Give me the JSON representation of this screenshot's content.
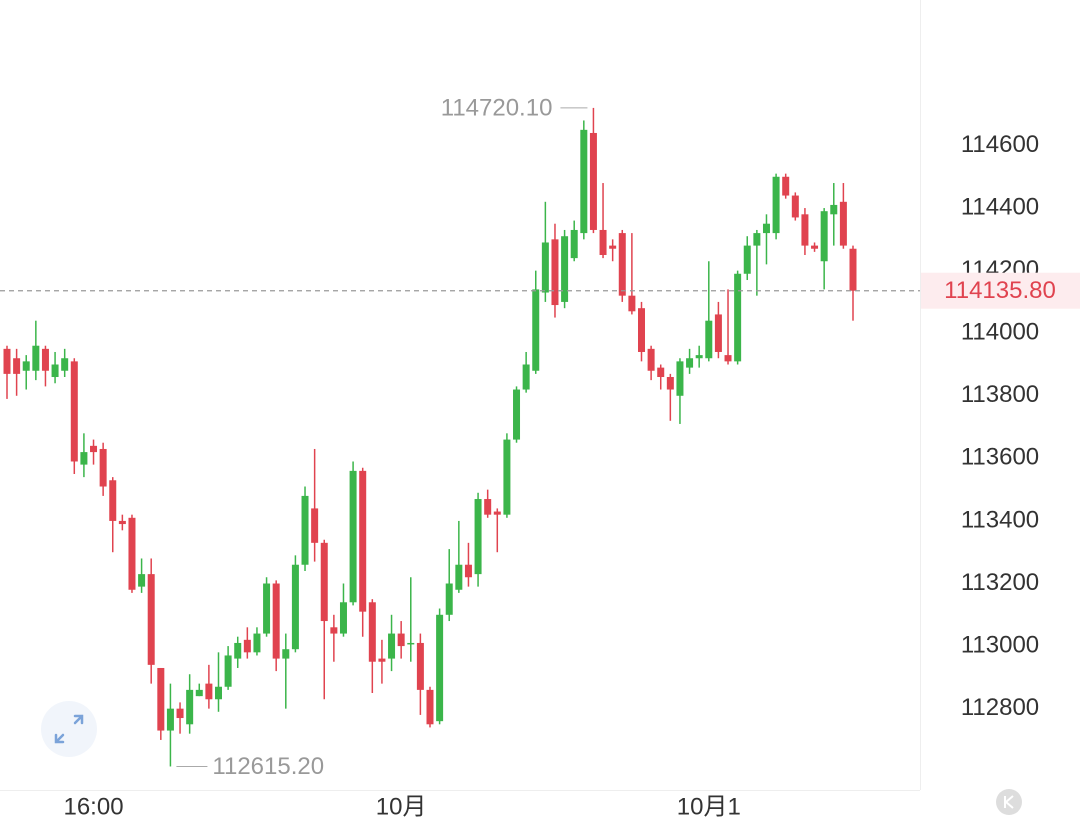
{
  "chart_data": {
    "type": "candlestick",
    "categories": [
      null,
      null,
      null,
      null,
      null,
      null,
      null,
      null,
      null,
      "16:00",
      null,
      null,
      null,
      null,
      null,
      null,
      null,
      null,
      null,
      null,
      null,
      null,
      null,
      null,
      null,
      null,
      null,
      null,
      null,
      null,
      null,
      null,
      null,
      null,
      null,
      null,
      null,
      null,
      null,
      null,
      null,
      "10月",
      null,
      null,
      null,
      null,
      null,
      null,
      null,
      null,
      null,
      null,
      null,
      null,
      null,
      null,
      null,
      null,
      null,
      null,
      null,
      null,
      null,
      null,
      null,
      null,
      null,
      null,
      null,
      null,
      null,
      null,
      null,
      "10月1",
      null,
      null,
      null,
      null,
      null,
      null,
      null,
      null,
      null,
      null,
      null,
      null,
      null,
      null,
      null
    ],
    "open": [
      113950,
      113920,
      113880,
      113880,
      113950,
      113860,
      113880,
      113910,
      113580,
      113640,
      113630,
      113530,
      113400,
      113410,
      113190,
      113230,
      112930,
      112730,
      112800,
      112750,
      112840,
      112880,
      112830,
      112870,
      112960,
      113020,
      112980,
      113040,
      113200,
      112960,
      112990,
      113260,
      113440,
      113330,
      113060,
      113040,
      113140,
      113560,
      113140,
      112960,
      112960,
      113040,
      113010,
      113010,
      112860,
      112760,
      113100,
      113180,
      113260,
      113230,
      113470,
      113430,
      113420,
      113660,
      113820,
      113880,
      114130,
      114300,
      114100,
      114240,
      114320,
      114640,
      114330,
      114280,
      114320,
      114120,
      114080,
      113950,
      113890,
      113860,
      113800,
      113890,
      113920,
      113920,
      114060,
      113930,
      113910,
      114190,
      114280,
      114320,
      114320,
      114500,
      114440,
      114380,
      114280,
      114230,
      114380,
      114420,
      114270
    ],
    "high": [
      113960,
      113950,
      113930,
      114040,
      113960,
      113940,
      113950,
      113920,
      113680,
      113660,
      113650,
      113540,
      113420,
      113420,
      113280,
      113280,
      112930,
      112880,
      112820,
      112910,
      112880,
      112940,
      112980,
      113000,
      113030,
      113060,
      113060,
      113220,
      113210,
      113040,
      113290,
      113510,
      113630,
      113340,
      113100,
      113200,
      113590,
      113570,
      113150,
      113020,
      113100,
      113080,
      113220,
      113040,
      112870,
      113120,
      113310,
      113400,
      113330,
      113490,
      113500,
      113440,
      113680,
      113830,
      113940,
      114200,
      114420,
      114350,
      114330,
      114360,
      114680,
      114720.1,
      114480,
      114300,
      114330,
      114320,
      114100,
      113960,
      113900,
      113870,
      113920,
      113950,
      113960,
      114230,
      114100,
      114140,
      114200,
      114310,
      114330,
      114380,
      114510,
      114510,
      114450,
      114400,
      114290,
      114400,
      114480,
      114480,
      114280
    ],
    "low": [
      113790,
      113800,
      113820,
      113850,
      113830,
      113840,
      113860,
      113550,
      113540,
      113580,
      113480,
      113300,
      113370,
      113170,
      113170,
      112880,
      112700,
      112615.2,
      112720,
      112720,
      112840,
      112800,
      112790,
      112860,
      112930,
      112960,
      112970,
      113030,
      112920,
      112800,
      112980,
      113240,
      113270,
      112830,
      112950,
      113030,
      113130,
      113030,
      112850,
      112880,
      112920,
      112960,
      112950,
      112780,
      112740,
      112750,
      113080,
      113170,
      113190,
      113190,
      113410,
      113300,
      113410,
      113650,
      113810,
      113870,
      114100,
      114050,
      114080,
      114230,
      114300,
      114320,
      114240,
      114230,
      114100,
      114060,
      113910,
      113850,
      113820,
      113720,
      113710,
      113870,
      113890,
      113910,
      113920,
      113900,
      113900,
      114170,
      114120,
      114220,
      114300,
      114430,
      114360,
      114250,
      114260,
      114140,
      114280,
      114270,
      114040
    ],
    "close": [
      113870,
      113870,
      113910,
      113960,
      113880,
      113900,
      113920,
      113590,
      113620,
      113620,
      113510,
      113400,
      113390,
      113180,
      113230,
      112940,
      112730,
      112800,
      112770,
      112860,
      112860,
      112830,
      112870,
      112970,
      113010,
      112980,
      113040,
      113200,
      112960,
      112990,
      113260,
      113480,
      113330,
      113080,
      113040,
      113140,
      113560,
      113110,
      112950,
      112950,
      113040,
      113000,
      113010,
      112860,
      112750,
      113100,
      113200,
      113260,
      113220,
      113470,
      113420,
      113420,
      113660,
      113820,
      113900,
      114140,
      114290,
      114090,
      114310,
      114330,
      114650,
      114330,
      114250,
      114270,
      114120,
      114070,
      113940,
      113880,
      113860,
      113820,
      113910,
      113920,
      113930,
      114040,
      113940,
      113910,
      114190,
      114280,
      114320,
      114350,
      114500,
      114440,
      114370,
      114280,
      114270,
      114390,
      114410,
      114280,
      114135.8
    ],
    "up_color": "#3bb54a",
    "down_color": "#e0434f",
    "ylim": [
      112540,
      115065
    ],
    "yticks": [
      112800,
      113000,
      113200,
      113400,
      113600,
      113800,
      114000,
      114200,
      114400,
      114600
    ],
    "last_price": {
      "value": 114135.8,
      "label": "114135.80"
    },
    "max_label": {
      "value": 114720.1,
      "label": "114720.10"
    },
    "min_label": {
      "value": 112615.2,
      "label": "112615.20"
    }
  }
}
